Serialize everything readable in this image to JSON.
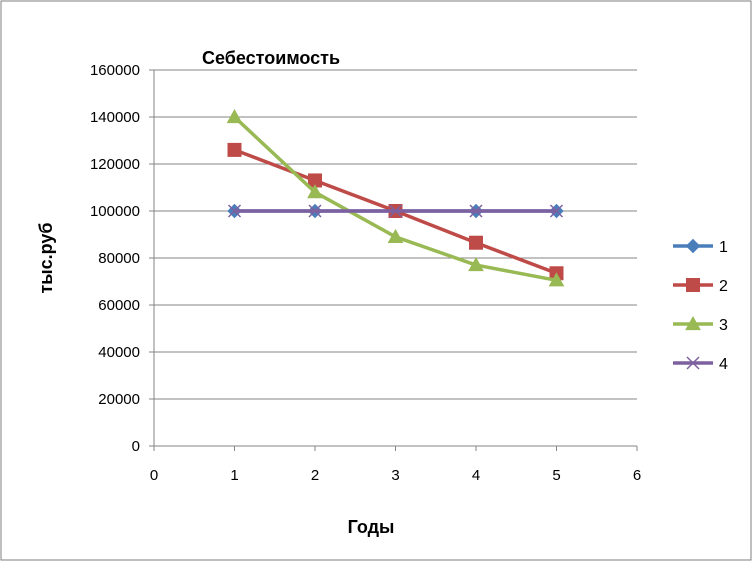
{
  "chart_data": {
    "type": "line",
    "title": "Себестоимость",
    "xlabel": "Годы",
    "ylabel": "тыс.руб",
    "xlim": [
      0,
      6
    ],
    "ylim": [
      0,
      160000
    ],
    "x_ticks": [
      0,
      1,
      2,
      3,
      4,
      5,
      6
    ],
    "y_ticks": [
      0,
      20000,
      40000,
      60000,
      80000,
      100000,
      120000,
      140000,
      160000
    ],
    "grid": "horizontal",
    "legend_position": "right",
    "series": [
      {
        "name": "1",
        "color": "#4a7ebb",
        "marker": "diamond",
        "x": [
          1,
          2,
          3,
          4,
          5
        ],
        "values": [
          100000,
          100000,
          100000,
          100000,
          100000
        ]
      },
      {
        "name": "2",
        "color": "#be4b48",
        "marker": "square",
        "x": [
          1,
          2,
          3,
          4,
          5
        ],
        "values": [
          126000,
          113000,
          100000,
          86500,
          73500
        ]
      },
      {
        "name": "3",
        "color": "#98b954",
        "marker": "triangle",
        "x": [
          1,
          2,
          3,
          4,
          5
        ],
        "values": [
          140000,
          108000,
          89000,
          77000,
          70500
        ]
      },
      {
        "name": "4",
        "color": "#7d60a0",
        "marker": "x",
        "x": [
          1,
          2,
          3,
          4,
          5
        ],
        "values": [
          100000,
          100000,
          100000,
          100000,
          100000
        ]
      }
    ]
  }
}
